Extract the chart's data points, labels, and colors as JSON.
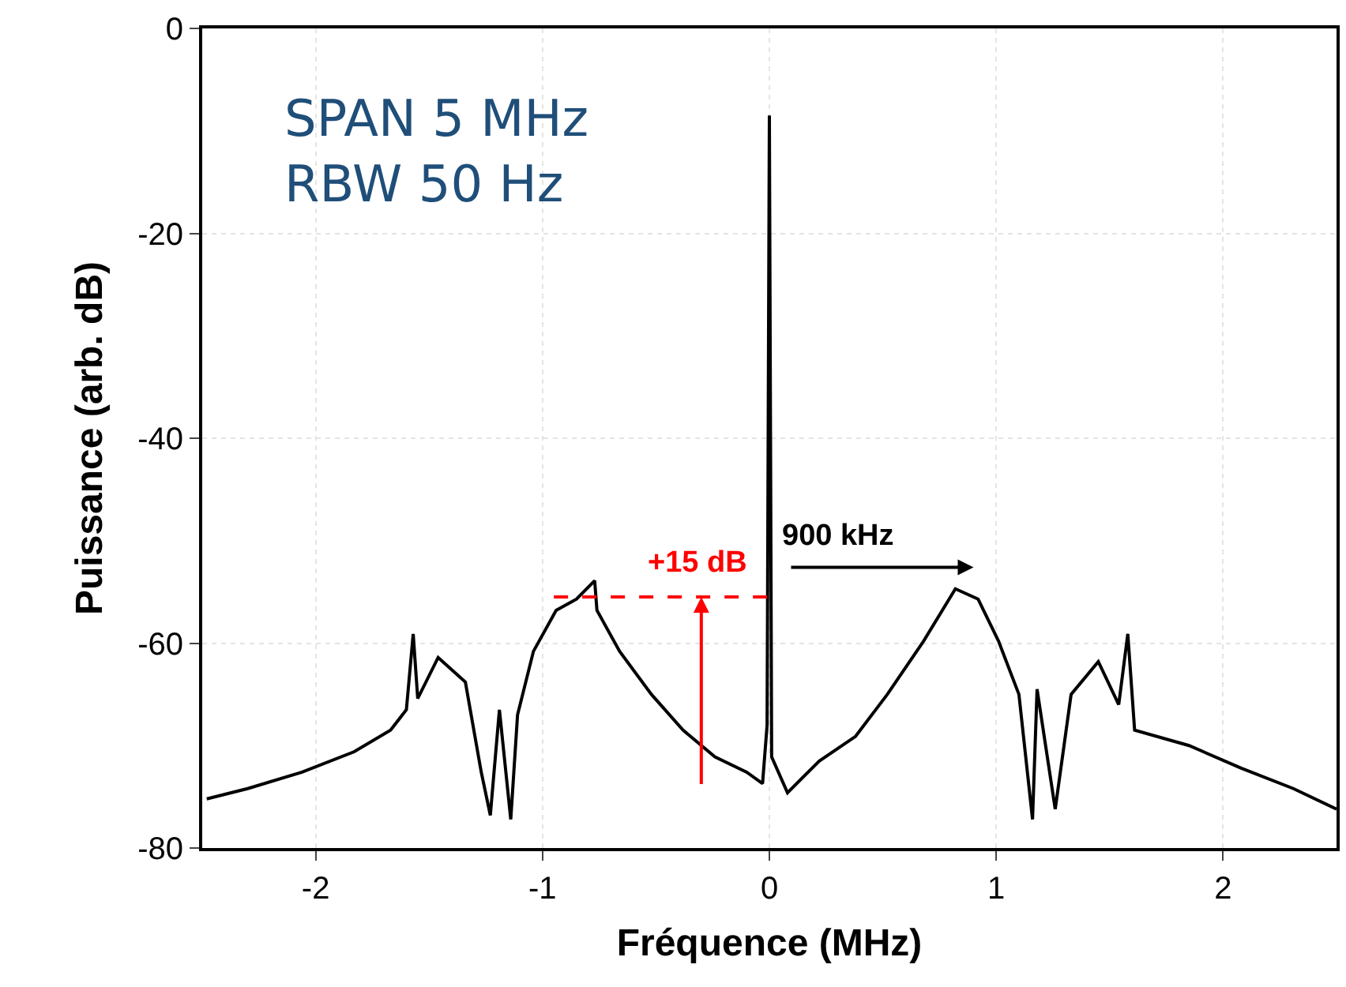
{
  "chart_data": {
    "type": "line",
    "xlabel": "Fréquence (MHz)",
    "ylabel": "Puissance (arb. dB)",
    "xlim": [
      -2.5,
      2.5
    ],
    "xticks": [
      -2,
      -1,
      0,
      1,
      2
    ],
    "ylim": [
      -80,
      0
    ],
    "yticks": [
      -80,
      -60,
      -40,
      -20,
      0
    ],
    "grid": true,
    "marker": "none",
    "series": [
      {
        "color": "#000000",
        "line_style": "solid",
        "x": [
          -2.48,
          -2.3,
          -2.06,
          -1.83,
          -1.67,
          -1.6,
          -1.57,
          -1.55,
          -1.46,
          -1.34,
          -1.27,
          -1.23,
          -1.19,
          -1.14,
          -1.11,
          -1.04,
          -0.94,
          -0.85,
          -0.77,
          -0.76,
          -0.66,
          -0.52,
          -0.38,
          -0.24,
          -0.1,
          -0.03,
          -0.01,
          0,
          0.01,
          0.08,
          0.22,
          0.38,
          0.52,
          0.68,
          0.82,
          0.92,
          1.01,
          1.1,
          1.16,
          1.18,
          1.26,
          1.33,
          1.45,
          1.54,
          1.58,
          1.61,
          1.85,
          2.08,
          2.31,
          2.5
        ],
        "values": [
          -75.2,
          -74.2,
          -72.6,
          -70.6,
          -68.5,
          -66.5,
          -59.1,
          -65.4,
          -61.4,
          -63.8,
          -72.6,
          -76.8,
          -66.5,
          -77.2,
          -67,
          -60.8,
          -56.8,
          -55.7,
          -53.9,
          -56.8,
          -60.8,
          -65,
          -68.5,
          -71.1,
          -72.6,
          -73.7,
          -68,
          -8.5,
          -71.1,
          -74.6,
          -71.5,
          -69.1,
          -65,
          -59.8,
          -54.7,
          -55.7,
          -59.8,
          -65,
          -77.2,
          -64.5,
          -76.2,
          -65,
          -61.8,
          -66,
          -59.1,
          -68.5,
          -70,
          -72.2,
          -74.2,
          -76.2
        ]
      },
      {
        "color": "#ff0000",
        "line_style": "dashed",
        "x": [
          -0.95,
          0
        ],
        "values": [
          -55.5,
          -55.5
        ]
      }
    ],
    "annotations": [
      "SPAN 5 MHz",
      "RBW 50 Hz",
      {
        "text": "+15 dB",
        "x": -0.3,
        "y": -55.5
      },
      "900 kHz"
    ]
  }
}
